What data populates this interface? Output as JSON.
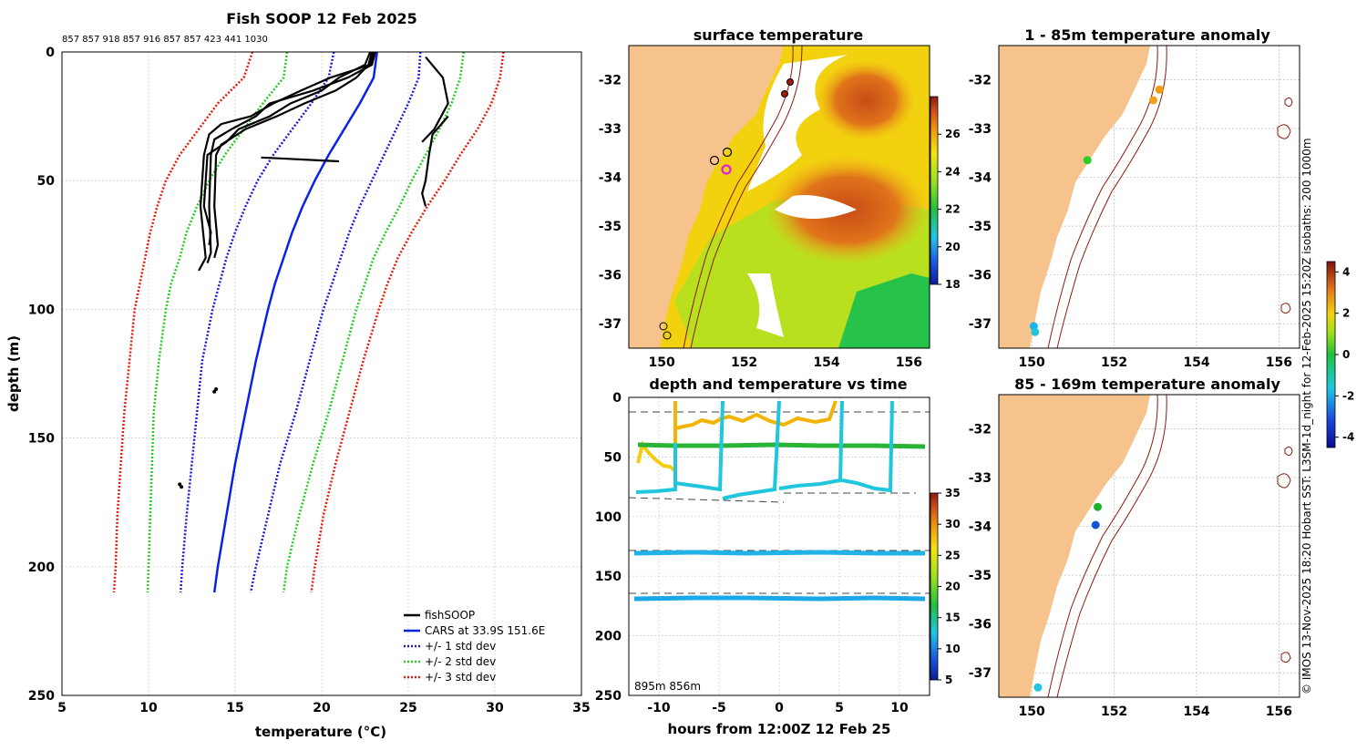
{
  "chart_data": [
    {
      "type": "line",
      "title": "Fish SOOP 12 Feb 2025",
      "subtitle": "857 857 918 857 916 857 857 423 441 1030",
      "xlabel": "temperature (°C)",
      "ylabel": "depth (m)",
      "xlim": [
        5,
        35
      ],
      "ylim": [
        250,
        0
      ],
      "xticks": [
        "5",
        "10",
        "15",
        "20",
        "25",
        "30",
        "35"
      ],
      "yticks": [
        "0",
        "50",
        "100",
        "150",
        "200",
        "250"
      ],
      "grid": true,
      "legend_position": "bottom-right",
      "legend": [
        "fishSOOP",
        "CARS at 33.9S 151.6E",
        "+/- 1 std dev",
        "+/- 2 std dev",
        "+/- 3 std dev"
      ],
      "colors": {
        "fishSOOP": "#000000",
        "cars": "#0b21e6",
        "std1": "#1a1ad6",
        "std2": "#22cc22",
        "std3": "#e61a0a"
      },
      "depths": [
        0,
        10,
        20,
        30,
        40,
        50,
        60,
        70,
        80,
        90,
        100,
        120,
        140,
        160,
        180,
        200,
        210
      ],
      "series": [
        {
          "name": "CARS mean",
          "values": [
            23.2,
            23.0,
            22.2,
            21.3,
            20.4,
            19.6,
            18.9,
            18.3,
            17.8,
            17.3,
            16.9,
            16.2,
            15.6,
            15.0,
            14.5,
            14.0,
            13.8
          ]
        },
        {
          "name": "+1 std",
          "values": [
            20.7,
            20.4,
            19.4,
            18.3,
            17.2,
            16.3,
            15.6,
            15.0,
            14.5,
            14.1,
            13.7,
            13.1,
            12.8,
            12.5,
            12.2,
            11.95,
            11.85
          ]
        },
        {
          "name": "-1 std",
          "values": [
            25.7,
            25.6,
            25.0,
            24.3,
            23.6,
            22.9,
            22.2,
            21.6,
            21.1,
            20.6,
            20.1,
            19.3,
            18.5,
            17.6,
            16.9,
            16.2,
            15.9
          ]
        },
        {
          "name": "+2 std",
          "values": [
            18.0,
            17.8,
            16.6,
            15.5,
            14.4,
            13.5,
            12.8,
            12.2,
            11.8,
            11.3,
            11.0,
            10.6,
            10.3,
            10.2,
            10.1,
            10.0,
            9.95
          ]
        },
        {
          "name": "-2 std",
          "values": [
            28.2,
            28.0,
            27.5,
            26.8,
            26.0,
            25.2,
            24.5,
            23.7,
            23.0,
            22.5,
            22.0,
            21.2,
            20.4,
            19.5,
            18.7,
            18.0,
            17.8
          ]
        },
        {
          "name": "+3 std",
          "values": [
            16.0,
            15.5,
            14.0,
            12.9,
            11.8,
            11.0,
            10.5,
            10.1,
            9.8,
            9.5,
            9.2,
            8.9,
            8.6,
            8.4,
            8.2,
            8.1,
            8.0
          ]
        },
        {
          "name": "-3 std",
          "values": [
            30.5,
            30.3,
            29.8,
            29.0,
            28.0,
            27.1,
            26.1,
            25.2,
            24.4,
            23.8,
            23.3,
            22.4,
            21.6,
            20.8,
            20.1,
            19.6,
            19.4
          ]
        }
      ],
      "fishsoop_profiles": [
        {
          "depth": [
            0,
            5,
            10,
            15,
            20,
            25,
            28,
            32,
            40,
            60,
            80,
            85
          ],
          "temp": [
            23.0,
            22.8,
            20.5,
            18.8,
            17.2,
            15.9,
            14.2,
            13.5,
            13.2,
            13.0,
            13.3,
            12.9
          ]
        },
        {
          "depth": [
            0,
            5,
            10,
            15,
            20,
            25,
            30,
            34,
            40,
            60,
            78,
            82
          ],
          "temp": [
            23.1,
            22.9,
            21.5,
            19.5,
            17.0,
            16.2,
            14.8,
            13.8,
            13.6,
            13.5,
            13.6,
            13.4
          ]
        },
        {
          "depth": [
            0,
            5,
            10,
            15,
            20,
            25,
            30,
            36,
            40,
            60,
            75,
            80
          ],
          "temp": [
            22.9,
            22.7,
            22.0,
            20.8,
            19.0,
            17.4,
            15.6,
            14.2,
            13.9,
            13.8,
            14.0,
            13.8
          ]
        },
        {
          "depth": [
            0,
            5,
            10,
            15,
            20,
            25,
            30,
            35,
            40,
            60,
            70,
            75
          ],
          "temp": [
            22.8,
            22.5,
            21.0,
            20.0,
            18.2,
            17.0,
            15.2,
            14.5,
            13.4,
            13.2,
            13.6,
            13.5
          ]
        },
        {
          "depth": [
            2,
            10,
            20,
            30,
            35
          ],
          "temp": [
            26.0,
            27.0,
            27.3,
            26.5,
            25.8
          ]
        },
        {
          "depth": [
            25,
            32,
            40,
            50,
            55,
            60
          ],
          "temp": [
            27.3,
            26.4,
            26.2,
            26.0,
            25.8,
            26.0
          ]
        },
        {
          "depth": [
            41,
            41.5,
            42,
            42.5
          ],
          "temp": [
            16.5,
            18.0,
            19.5,
            21.0
          ]
        }
      ]
    },
    {
      "type": "heatmap",
      "title": "surface temperature",
      "xticks": [
        "150",
        "152",
        "154",
        "156"
      ],
      "yticks": [
        "-32",
        "-33",
        "-34",
        "-35",
        "-36",
        "-37"
      ],
      "xlim": [
        149.2,
        156.5
      ],
      "ylim": [
        -37.5,
        -31.3
      ],
      "colorbar": {
        "ticks": [
          "26",
          "24",
          "22",
          "20",
          "18"
        ],
        "range": [
          18,
          28
        ]
      }
    },
    {
      "type": "scatter",
      "title": "depth and temperature vs time",
      "xlabel": "hours from 12:00Z 12 Feb 25",
      "xticks": [
        "-10",
        "-5",
        "0",
        "5",
        "10"
      ],
      "yticks": [
        "0",
        "50",
        "100",
        "150",
        "200",
        "250"
      ],
      "xlim": [
        -12.5,
        12.5
      ],
      "ylim": [
        250,
        0
      ],
      "annotation": "895m 856m",
      "colorbar": {
        "ticks": [
          "35",
          "30",
          "25",
          "20",
          "15",
          "10",
          "5"
        ],
        "range": [
          5,
          35
        ]
      },
      "series": [
        {
          "name": "surface track (warm)",
          "color": "#f2b400",
          "depth_hint": "8-35 m"
        },
        {
          "name": "~42 m track",
          "color": "#29b436",
          "depth_hint": "42 m"
        },
        {
          "name": "~80 m track",
          "color": "#1fc6dd",
          "depth_hint": "78-85 m"
        },
        {
          "name": "~133 m track",
          "color": "#22b2e8",
          "depth_hint": "133 m"
        },
        {
          "name": "~170 m track",
          "color": "#1aa8e8",
          "depth_hint": "170 m"
        }
      ]
    },
    {
      "type": "scatter",
      "title": "1 - 85m temperature anomaly",
      "xticks": [
        "150",
        "152",
        "154",
        "156"
      ],
      "yticks": [
        "-32",
        "-33",
        "-34",
        "-35",
        "-36",
        "-37"
      ],
      "points": [
        {
          "lon": 151.35,
          "lat": -33.65,
          "anomaly": 0.2,
          "color": "#26d026"
        },
        {
          "lon": 152.95,
          "lat": -32.42,
          "anomaly": 2.4,
          "color": "#f2a21a"
        },
        {
          "lon": 153.1,
          "lat": -32.2,
          "anomaly": 2.6,
          "color": "#f29a10"
        },
        {
          "lon": 150.05,
          "lat": -37.05,
          "anomaly": -2.2,
          "color": "#1ab4e6"
        },
        {
          "lon": 150.08,
          "lat": -37.17,
          "anomaly": -2.0,
          "color": "#22c4d6"
        }
      ]
    },
    {
      "type": "scatter",
      "title": "85 - 169m temperature anomaly",
      "xticks": [
        "150",
        "152",
        "154",
        "156"
      ],
      "yticks": [
        "-32",
        "-33",
        "-34",
        "-35",
        "-36",
        "-37"
      ],
      "points": [
        {
          "lon": 151.6,
          "lat": -33.6,
          "anomaly": 0.0,
          "color": "#1fb02a"
        },
        {
          "lon": 151.55,
          "lat": -33.97,
          "anomaly": -3.2,
          "color": "#1253d6"
        },
        {
          "lon": 150.15,
          "lat": -37.3,
          "anomaly": -2.0,
          "color": "#22c4e0"
        }
      ],
      "colorbar": {
        "ticks": [
          "4",
          "2",
          "0",
          "-2",
          "-4"
        ],
        "range": [
          -4.5,
          4.5
        ]
      }
    }
  ],
  "side_caption": "© IMOS 13-Nov-2025 18:20 Hobart SST: L3SM-1d_night for 12-Feb-2025 15:20Z isobaths: 200  1000m"
}
